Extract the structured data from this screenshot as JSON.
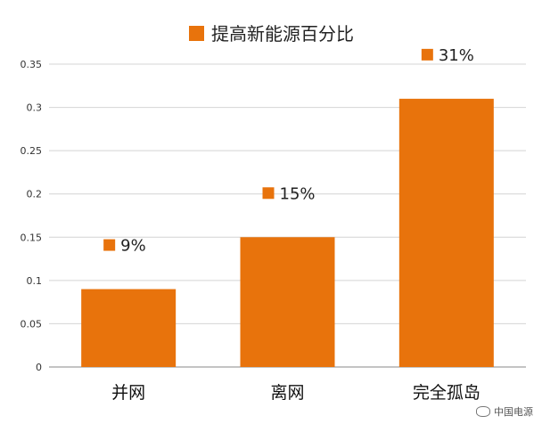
{
  "chart_data": {
    "type": "bar",
    "legend": "提高新能源百分比",
    "categories": [
      "并网",
      "离网",
      "完全孤岛"
    ],
    "values": [
      0.09,
      0.15,
      0.31
    ],
    "data_labels": [
      "9%",
      "15%",
      "31%"
    ],
    "ylim": [
      0,
      0.35
    ],
    "yticks": [
      "0",
      "0.05",
      "0.1",
      "0.15",
      "0.2",
      "0.25",
      "0.3",
      "0.35"
    ],
    "color": "#e8730c",
    "grid": true,
    "legend_position": "top"
  },
  "watermark": {
    "text": "中国电源"
  }
}
